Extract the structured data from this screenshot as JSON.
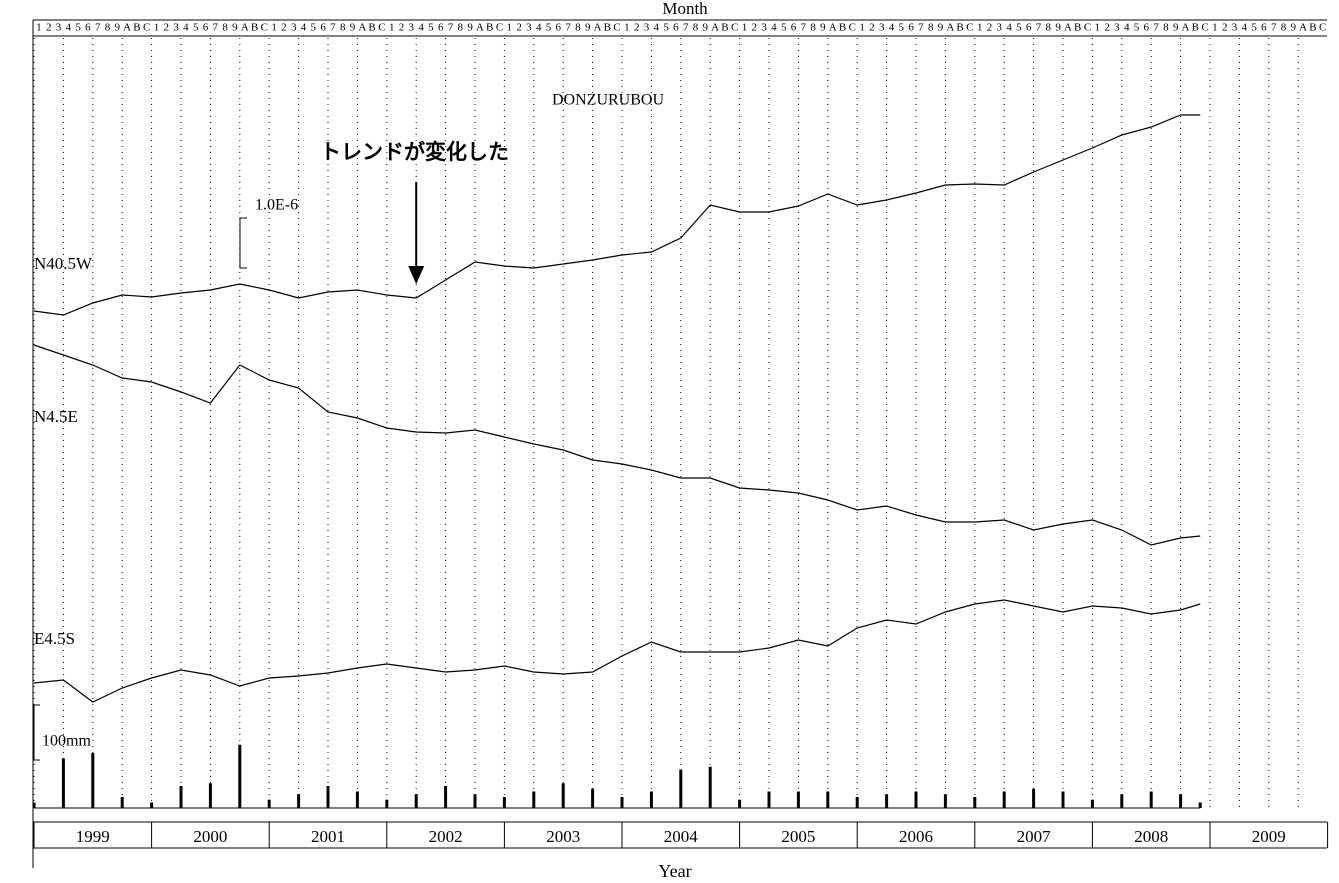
{
  "chart_data": {
    "type": "line",
    "title": "DONZURUBOU",
    "x_label_top": "Month",
    "x_label": "Year",
    "months": [
      "1",
      "2",
      "3",
      "4",
      "5",
      "6",
      "7",
      "8",
      "9",
      "A",
      "B",
      "C"
    ],
    "categories": [
      "1999",
      "2000",
      "2001",
      "2002",
      "2003",
      "2004",
      "2005",
      "2006",
      "2007",
      "2008",
      "2009"
    ],
    "x": [
      "1999-01",
      "1999-04",
      "1999-07",
      "1999-10",
      "2000-01",
      "2000-04",
      "2000-07",
      "2000-10",
      "2001-01",
      "2001-04",
      "2001-07",
      "2001-10",
      "2002-01",
      "2002-04",
      "2002-07",
      "2002-10",
      "2003-01",
      "2003-04",
      "2003-07",
      "2003-10",
      "2004-01",
      "2004-04",
      "2004-07",
      "2004-10",
      "2005-01",
      "2005-04",
      "2005-07",
      "2005-10",
      "2006-01",
      "2006-04",
      "2006-07",
      "2006-10",
      "2007-01",
      "2007-04",
      "2007-07",
      "2007-10",
      "2008-01",
      "2008-04",
      "2008-07",
      "2008-10",
      "2008-12"
    ],
    "series": [
      {
        "name": "N40.5W",
        "color": "#000000",
        "values": [
          0,
          -8e-08,
          1.6e-07,
          3.2e-07,
          2.8e-07,
          3.6e-07,
          4.2e-07,
          5.4e-07,
          4.2e-07,
          2.6e-07,
          3.8e-07,
          4.2e-07,
          3.2e-07,
          2.6e-07,
          6.2e-07,
          9.8e-07,
          9e-07,
          8.6e-07,
          9.4e-07,
          1.02e-06,
          1.12e-06,
          1.18e-06,
          1.46e-06,
          2.12e-06,
          1.98e-06,
          1.98e-06,
          2.1e-06,
          2.34e-06,
          2.12e-06,
          2.22e-06,
          2.36e-06,
          2.52e-06,
          2.54e-06,
          2.52e-06,
          2.78e-06,
          3.02e-06,
          3.26e-06,
          3.52e-06,
          3.68e-06,
          3.92e-06,
          3.92e-06
        ]
      },
      {
        "name": "N4.5E",
        "color": "#000000",
        "values": [
          0,
          -2e-07,
          -4e-07,
          -6.6e-07,
          -7.4e-07,
          -9.4e-07,
          -1.16e-06,
          -4e-07,
          -7e-07,
          -8.6e-07,
          -1.34e-06,
          -1.46e-06,
          -1.66e-06,
          -1.74e-06,
          -1.76e-06,
          -1.7e-06,
          -1.84e-06,
          -1.98e-06,
          -2.1e-06,
          -2.3e-06,
          -2.38e-06,
          -2.5e-06,
          -2.66e-06,
          -2.66e-06,
          -2.86e-06,
          -2.9e-06,
          -2.96e-06,
          -3.1e-06,
          -3.3e-06,
          -3.22e-06,
          -3.4e-06,
          -3.54e-06,
          -3.54e-06,
          -3.5e-06,
          -3.7e-06,
          -3.58e-06,
          -3.5e-06,
          -3.7e-06,
          -4e-06,
          -3.86e-06,
          -3.82e-06
        ]
      },
      {
        "name": "E4.5S",
        "color": "#000000",
        "values": [
          0,
          6e-08,
          -3.8e-07,
          -1e-07,
          1e-07,
          2.6e-07,
          1.6e-07,
          -6e-08,
          1e-07,
          1.4e-07,
          2e-07,
          3e-07,
          3.8e-07,
          3e-07,
          2.2e-07,
          2.6e-07,
          3.4e-07,
          2.2e-07,
          1.8e-07,
          2.2e-07,
          5.4e-07,
          8.2e-07,
          6.2e-07,
          6.2e-07,
          6.2e-07,
          7e-07,
          8.6e-07,
          7.4e-07,
          1.1e-06,
          1.26e-06,
          1.18e-06,
          1.42e-06,
          1.58e-06,
          1.66e-06,
          1.54e-06,
          1.42e-06,
          1.54e-06,
          1.5e-06,
          1.38e-06,
          1.46e-06,
          1.58e-06
        ]
      }
    ],
    "rainfall": {
      "color": "#000000",
      "values": [
        10,
        90,
        100,
        20,
        10,
        40,
        45,
        115,
        15,
        25,
        40,
        30,
        15,
        25,
        40,
        25,
        20,
        30,
        45,
        35,
        20,
        30,
        70,
        75,
        15,
        30,
        30,
        30,
        20,
        25,
        30,
        25,
        20,
        30,
        35,
        30,
        15,
        25,
        30,
        25,
        10
      ]
    },
    "strain_scale": {
      "value": 1e-06,
      "label": "1.0E-6"
    },
    "rain_scale": {
      "value": 100,
      "label": "100mm"
    },
    "annotation": {
      "text": "トレンドが変化した",
      "x": "2002-04"
    }
  }
}
